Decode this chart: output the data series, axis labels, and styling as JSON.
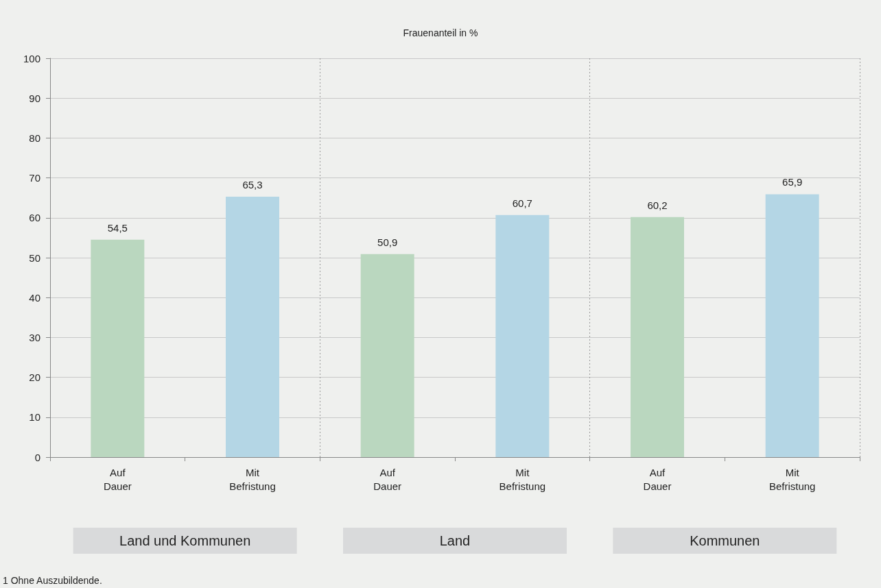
{
  "chart_data": {
    "type": "bar",
    "title": "Frauenanteil in %",
    "categories": [
      "Auf\nDauer",
      "Mit\nBefristung",
      "Auf\nDauer",
      "Mit\nBefristung",
      "Auf\nDauer",
      "Mit\nBefristung"
    ],
    "values": [
      54.5,
      65.3,
      50.9,
      60.7,
      60.2,
      65.9
    ],
    "colors": [
      "#bad7bf",
      "#b4d6e5",
      "#bad7bf",
      "#b4d6e5",
      "#bad7bf",
      "#b4d6e5"
    ],
    "value_labels": [
      "54,5",
      "65,3",
      "50,9",
      "60,7",
      "60,2",
      "65,9"
    ],
    "ylim": [
      0,
      100
    ],
    "yticks": [
      0,
      10,
      20,
      30,
      40,
      50,
      60,
      70,
      80,
      90,
      100
    ],
    "grid": "y",
    "annotations": [
      "Land und Kommunen",
      "Land",
      "Kommunen",
      "1 Ohne Auszubildende."
    ]
  }
}
